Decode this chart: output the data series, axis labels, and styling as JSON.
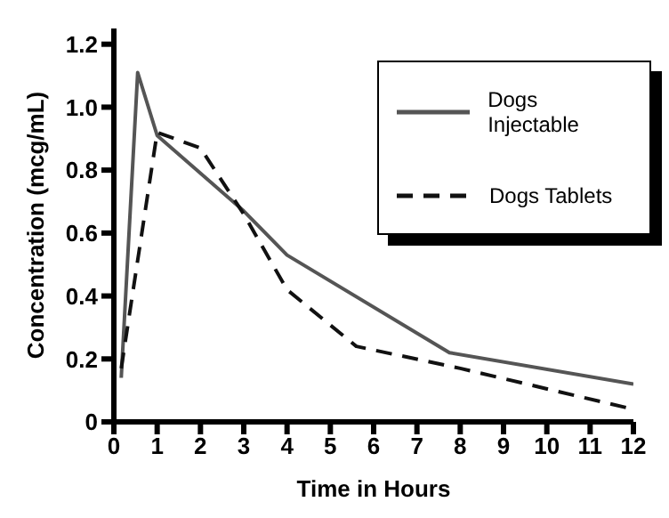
{
  "chart_data": {
    "type": "line",
    "xlabel": "Time in Hours",
    "ylabel": "Concentration (mcg/mL)",
    "xlim": [
      0,
      12
    ],
    "ylim": [
      0,
      1.25
    ],
    "xticks": [
      0,
      1,
      2,
      3,
      4,
      5,
      6,
      7,
      8,
      9,
      10,
      11,
      12
    ],
    "yticks": [
      {
        "value": 0,
        "label": "0"
      },
      0.2,
      0.4,
      0.6,
      0.8,
      {
        "value": 1,
        "label": "1.0"
      },
      1.2
    ],
    "grid": false,
    "legend": "top right",
    "marker": "none",
    "series": [
      {
        "name": "Dogs Injectable",
        "color": "#555555",
        "line_style": "solid",
        "x": [
          0.17,
          0.55,
          1,
          3,
          4,
          7.75,
          12
        ],
        "values": [
          0.14,
          1.11,
          0.91,
          0.67,
          0.53,
          0.22,
          0.12
        ]
      },
      {
        "name": "Dogs Tablets",
        "color": "#111111",
        "line_style": "dashed",
        "x": [
          0.17,
          1,
          2,
          3,
          4,
          5.6,
          8,
          12
        ],
        "values": [
          0.17,
          0.92,
          0.87,
          0.66,
          0.42,
          0.24,
          0.17,
          0.04
        ]
      }
    ]
  }
}
